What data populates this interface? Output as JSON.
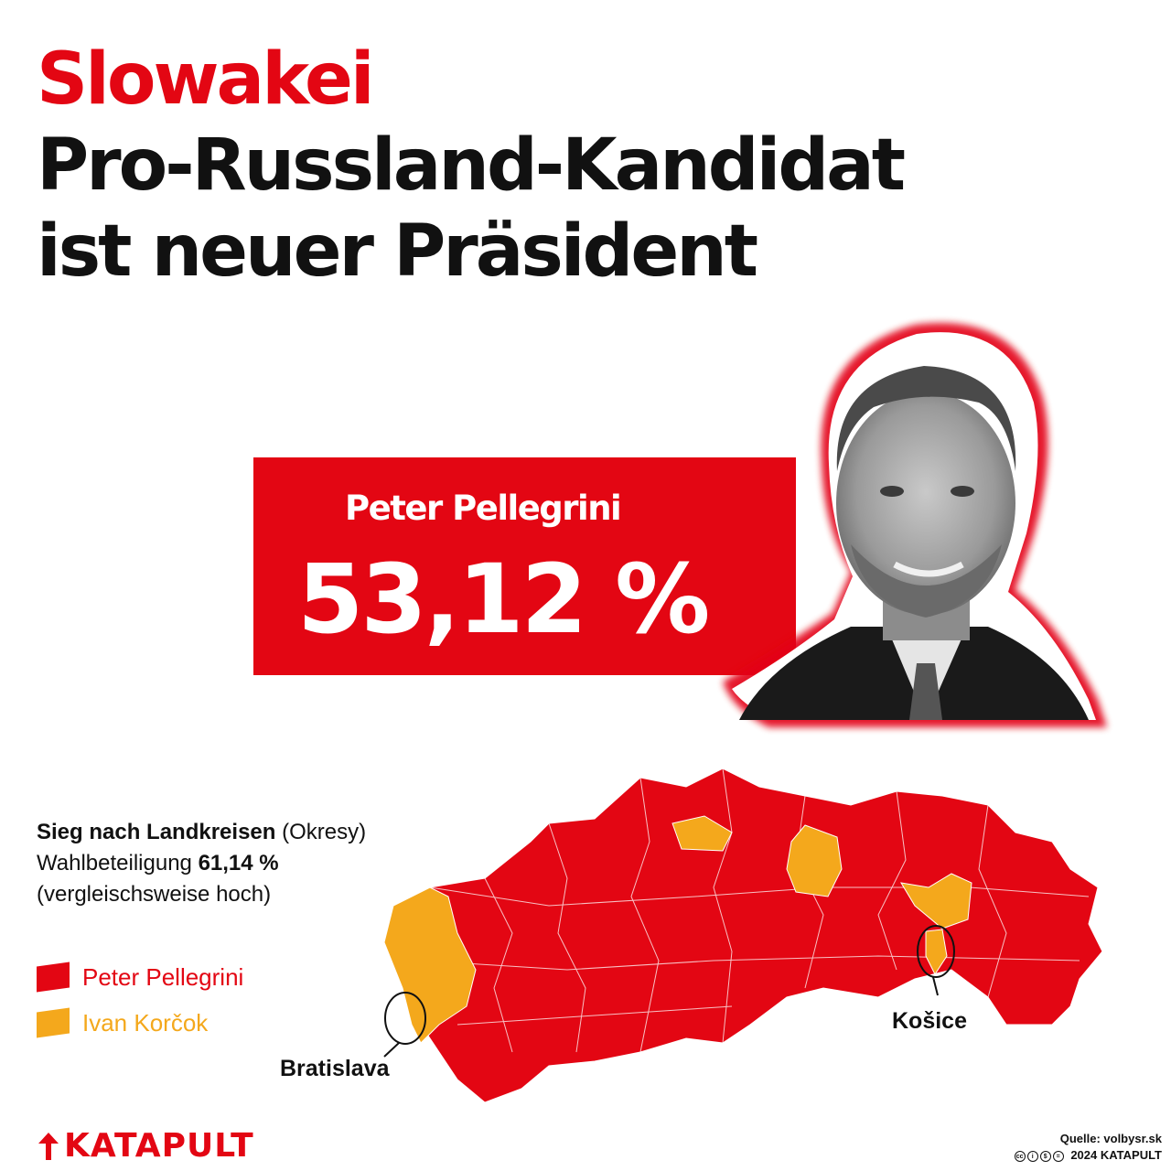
{
  "headline": {
    "kicker": "Slowakei",
    "line1": "Pro-Russland-Kandidat",
    "line2": "ist neuer Präsident"
  },
  "result": {
    "name": "Peter Pellegrini",
    "percent": "53,12 %"
  },
  "map_info": {
    "title": "Sieg nach Landkreisen",
    "title_suffix": "(Okresy)",
    "turnout_label": "Wahlbeteiligung",
    "turnout_value": "61,14 %",
    "turnout_note": "(vergleischsweise hoch)"
  },
  "legend": [
    {
      "label": "Peter Pellegrini",
      "color": "#e30613"
    },
    {
      "label": "Ivan Korčok",
      "color": "#f4a81c"
    }
  ],
  "cities": {
    "bratislava": "Bratislava",
    "kosice": "Košice"
  },
  "footer": {
    "brand": "KATAPULT",
    "source": "Quelle: volbysr.sk",
    "copyright": "2024 KATAPULT"
  },
  "colors": {
    "accent": "#e30613",
    "korcok": "#f4a81c"
  }
}
